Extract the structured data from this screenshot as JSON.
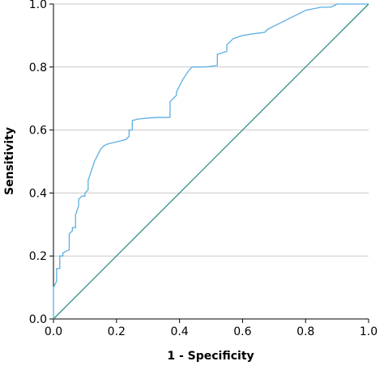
{
  "chart_data": {
    "type": "line",
    "xlabel": "1 - Specificity",
    "ylabel": "Sensitivity",
    "xlim": [
      0.0,
      1.0
    ],
    "ylim": [
      0.0,
      1.0
    ],
    "x_ticks": [
      "0.0",
      "0.2",
      "0.4",
      "0.6",
      "0.8",
      "1.0"
    ],
    "y_ticks": [
      "0.0",
      "0.2",
      "0.4",
      "0.6",
      "0.8",
      "1.0"
    ],
    "grid": "horizontal",
    "series": [
      {
        "color": "#5aafe0",
        "x": [
          0.0,
          0.0,
          0.01,
          0.01,
          0.02,
          0.02,
          0.03,
          0.03,
          0.05,
          0.05,
          0.06,
          0.06,
          0.07,
          0.07,
          0.08,
          0.08,
          0.09,
          0.1,
          0.1,
          0.11,
          0.11,
          0.12,
          0.13,
          0.14,
          0.15,
          0.16,
          0.17,
          0.19,
          0.21,
          0.23,
          0.24,
          0.24,
          0.25,
          0.25,
          0.27,
          0.3,
          0.33,
          0.37,
          0.37,
          0.38,
          0.39,
          0.39,
          0.41,
          0.43,
          0.44,
          0.46,
          0.49,
          0.52,
          0.52,
          0.55,
          0.55,
          0.56,
          0.57,
          0.6,
          0.63,
          0.67,
          0.68,
          0.7,
          0.72,
          0.74,
          0.76,
          0.78,
          0.8,
          0.85,
          0.88,
          0.9,
          0.92,
          0.95,
          0.98,
          1.0
        ],
        "y": [
          0.0,
          0.1,
          0.12,
          0.16,
          0.16,
          0.2,
          0.2,
          0.21,
          0.22,
          0.27,
          0.28,
          0.29,
          0.29,
          0.33,
          0.36,
          0.38,
          0.39,
          0.39,
          0.4,
          0.41,
          0.44,
          0.47,
          0.5,
          0.52,
          0.54,
          0.55,
          0.555,
          0.56,
          0.565,
          0.57,
          0.58,
          0.6,
          0.6,
          0.63,
          0.635,
          0.638,
          0.64,
          0.64,
          0.69,
          0.7,
          0.71,
          0.72,
          0.76,
          0.79,
          0.8,
          0.8,
          0.801,
          0.805,
          0.84,
          0.85,
          0.87,
          0.88,
          0.89,
          0.9,
          0.905,
          0.91,
          0.92,
          0.93,
          0.94,
          0.95,
          0.96,
          0.97,
          0.98,
          0.99,
          0.99,
          1.0,
          1.0,
          1.0,
          1.0,
          1.0
        ]
      },
      {
        "color": "#2e8c85",
        "x": [
          0.0,
          1.0
        ],
        "y": [
          0.0,
          1.0
        ]
      }
    ]
  }
}
